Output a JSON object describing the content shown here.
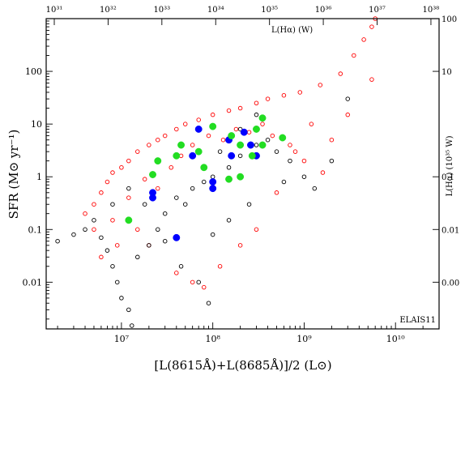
{
  "chart_data": {
    "type": "scatter",
    "panel_label": "ELAIS11",
    "xlabel": "[L(8615Å)+L(8685Å)]/2 (L⊙)",
    "ylabel": "SFR (M⊙ yr⁻¹)",
    "top_axis_label": "L(Hα) (W)",
    "right_axis_label": "L(Hα) (10³⁵ W)",
    "x_scale": "log",
    "y_scale": "log",
    "xlim": [
      1500000,
      30000000000
    ],
    "ylim": [
      0.0013,
      1000
    ],
    "x_ticks": [
      {
        "value": 10000000,
        "label": "10⁷"
      },
      {
        "value": 100000000,
        "label": "10⁸"
      },
      {
        "value": 1000000000,
        "label": "10⁹"
      },
      {
        "value": 10000000000,
        "label": "10¹⁰"
      }
    ],
    "y_ticks": [
      {
        "value": 0.01,
        "label": "0.01"
      },
      {
        "value": 0.1,
        "label": "0.1"
      },
      {
        "value": 1,
        "label": "1"
      },
      {
        "value": 10,
        "label": "10"
      },
      {
        "value": 100,
        "label": "100"
      }
    ],
    "top_ticks": [
      {
        "label": "10³¹",
        "frac": 0.0
      },
      {
        "label": "10³²",
        "frac": 0.1667
      },
      {
        "label": "10³³",
        "frac": 0.3333
      },
      {
        "label": "10³⁴",
        "frac": 0.5
      },
      {
        "label": "10³⁵",
        "frac": 0.6667
      },
      {
        "label": "10³⁶",
        "frac": 0.8333
      },
      {
        "label": "10³⁷",
        "frac": 1.0
      },
      {
        "label": "10³⁸",
        "frac": 1.1667
      }
    ],
    "right_ticks": [
      {
        "label": "100",
        "value": 1000
      },
      {
        "label": "10",
        "value": 100
      },
      {
        "label": "0.1",
        "value": 1
      },
      {
        "label": "0.01",
        "value": 0.1
      },
      {
        "label": "0.00",
        "value": 0.01
      }
    ],
    "colors": {
      "red": "#ff0000",
      "black": "#000000",
      "blue": "#0000ff",
      "green": "#22dd22"
    },
    "series": [
      {
        "color": "#ff0000",
        "marker": "open-circle",
        "points": [
          [
            4000000,
            0.2
          ],
          [
            5000000,
            0.3
          ],
          [
            6000000,
            0.5
          ],
          [
            7000000,
            0.8
          ],
          [
            8000000,
            1.2
          ],
          [
            10000000,
            1.5
          ],
          [
            12000000,
            2.0
          ],
          [
            15000000,
            3.0
          ],
          [
            20000000,
            4.0
          ],
          [
            25000000,
            5.0
          ],
          [
            30000000,
            6.0
          ],
          [
            40000000,
            8.0
          ],
          [
            50000000,
            10.0
          ],
          [
            70000000,
            12.0
          ],
          [
            100000000,
            15.0
          ],
          [
            150000000,
            18.0
          ],
          [
            200000000,
            20.0
          ],
          [
            300000000,
            25.0
          ],
          [
            400000000,
            30.0
          ],
          [
            600000000,
            35.0
          ],
          [
            900000000,
            40.0
          ],
          [
            1500000000,
            55.0
          ],
          [
            2500000000,
            90.0
          ],
          [
            3500000000,
            200.0
          ],
          [
            4500000000,
            400.0
          ],
          [
            5500000000,
            700.0
          ],
          [
            6000000000,
            1000.0
          ],
          [
            5500000000,
            70.0
          ],
          [
            1200000000,
            10.0
          ],
          [
            800000000,
            3.0
          ],
          [
            500000000,
            0.5
          ],
          [
            300000000,
            0.1
          ],
          [
            200000000,
            0.05
          ],
          [
            120000000,
            0.02
          ],
          [
            80000000,
            0.008
          ],
          [
            60000000,
            0.01
          ],
          [
            40000000,
            0.015
          ],
          [
            20000000,
            0.05
          ],
          [
            15000000,
            0.1
          ],
          [
            8000000,
            0.15
          ],
          [
            5000000,
            0.1
          ],
          [
            12000000,
            0.4
          ],
          [
            18000000,
            0.9
          ],
          [
            25000000,
            0.6
          ],
          [
            35000000,
            1.5
          ],
          [
            45000000,
            2.5
          ],
          [
            60000000,
            4.0
          ],
          [
            90000000,
            6.0
          ],
          [
            130000000,
            5.0
          ],
          [
            180000000,
            8.0
          ],
          [
            250000000,
            7.0
          ],
          [
            350000000,
            10.0
          ],
          [
            450000000,
            6.0
          ],
          [
            700000000,
            4.0
          ],
          [
            1000000000,
            2.0
          ],
          [
            1600000000,
            1.2
          ],
          [
            2000000000,
            5.0
          ],
          [
            3000000000,
            15.0
          ],
          [
            9000000,
            0.05
          ],
          [
            6000000,
            0.03
          ]
        ]
      },
      {
        "color": "#000000",
        "marker": "open-circle",
        "points": [
          [
            2000000,
            0.06
          ],
          [
            3000000,
            0.08
          ],
          [
            4000000,
            0.1
          ],
          [
            5000000,
            0.15
          ],
          [
            6000000,
            0.07
          ],
          [
            7000000,
            0.04
          ],
          [
            8000000,
            0.02
          ],
          [
            9000000,
            0.01
          ],
          [
            10000000,
            0.005
          ],
          [
            12000000,
            0.003
          ],
          [
            13000000,
            0.0015
          ],
          [
            15000000,
            0.03
          ],
          [
            20000000,
            0.05
          ],
          [
            25000000,
            0.1
          ],
          [
            30000000,
            0.2
          ],
          [
            40000000,
            0.4
          ],
          [
            50000000,
            0.3
          ],
          [
            60000000,
            0.6
          ],
          [
            80000000,
            0.8
          ],
          [
            100000000,
            1.0
          ],
          [
            150000000,
            1.5
          ],
          [
            200000000,
            2.5
          ],
          [
            300000000,
            4.0
          ],
          [
            400000000,
            5.0
          ],
          [
            500000000,
            3.0
          ],
          [
            700000000,
            2.0
          ],
          [
            1000000000,
            1.0
          ],
          [
            1300000000,
            0.6
          ],
          [
            2000000000,
            2.0
          ],
          [
            3000000000,
            30.0
          ],
          [
            250000000,
            0.3
          ],
          [
            150000000,
            0.15
          ],
          [
            100000000,
            0.08
          ],
          [
            70000000,
            0.01
          ],
          [
            90000000,
            0.004
          ],
          [
            45000000,
            0.02
          ],
          [
            30000000,
            0.06
          ],
          [
            18000000,
            0.3
          ],
          [
            12000000,
            0.6
          ],
          [
            8000000,
            0.3
          ],
          [
            300000000,
            15.0
          ],
          [
            200000000,
            8.0
          ],
          [
            120000000,
            3.0
          ],
          [
            600000000,
            0.8
          ]
        ]
      },
      {
        "color": "#0000ff",
        "marker": "filled-circle",
        "points": [
          [
            22000000,
            0.4
          ],
          [
            22000000,
            0.5
          ],
          [
            40000000,
            0.07
          ],
          [
            60000000,
            2.5
          ],
          [
            70000000,
            8.0
          ],
          [
            100000000,
            0.8
          ],
          [
            100000000,
            0.6
          ],
          [
            160000000,
            2.5
          ],
          [
            220000000,
            7.0
          ],
          [
            260000000,
            4.0
          ],
          [
            300000000,
            2.5
          ],
          [
            150000000,
            5.0
          ]
        ]
      },
      {
        "color": "#22dd22",
        "marker": "filled-circle",
        "points": [
          [
            12000000,
            0.15
          ],
          [
            22000000,
            1.1
          ],
          [
            25000000,
            2.0
          ],
          [
            40000000,
            2.5
          ],
          [
            45000000,
            4.0
          ],
          [
            70000000,
            3.0
          ],
          [
            80000000,
            1.5
          ],
          [
            100000000,
            9.0
          ],
          [
            150000000,
            0.9
          ],
          [
            160000000,
            6.0
          ],
          [
            200000000,
            4.0
          ],
          [
            200000000,
            1.0
          ],
          [
            270000000,
            2.5
          ],
          [
            300000000,
            8.0
          ],
          [
            350000000,
            13.0
          ],
          [
            350000000,
            4.0
          ],
          [
            580000000,
            5.5
          ]
        ]
      }
    ]
  }
}
